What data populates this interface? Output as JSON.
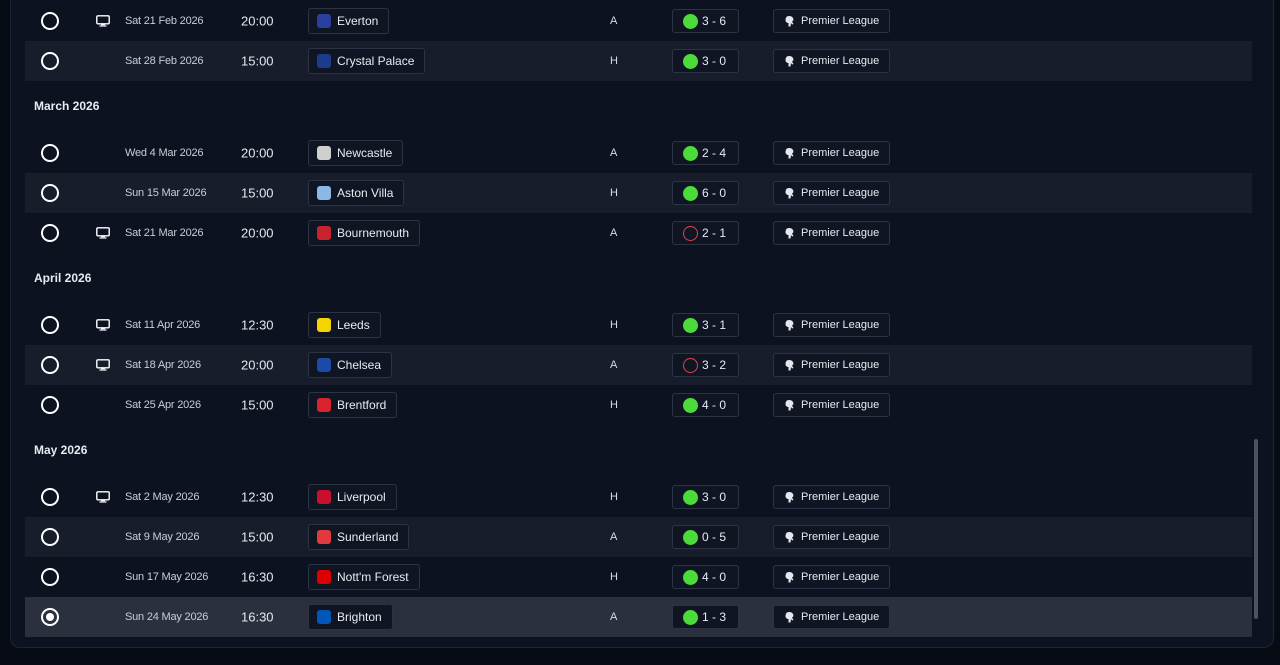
{
  "competition_label": "Premier League",
  "months": [
    {
      "label": "",
      "fixtures": [
        {
          "date": "Sat 21 Feb 2026",
          "time": "20:00",
          "opponent": "Everton",
          "crest_color": "#2a3f9e",
          "venue": "A",
          "outcome": "win",
          "score": "3 - 6",
          "tv": true,
          "selected": false
        },
        {
          "date": "Sat 28 Feb 2026",
          "time": "15:00",
          "opponent": "Crystal Palace",
          "crest_color": "#1b3c8c",
          "venue": "H",
          "outcome": "win",
          "score": "3 - 0",
          "tv": false,
          "selected": false
        }
      ]
    },
    {
      "label": "March 2026",
      "fixtures": [
        {
          "date": "Wed 4 Mar 2026",
          "time": "20:00",
          "opponent": "Newcastle",
          "crest_color": "#cfcfcf",
          "venue": "A",
          "outcome": "win",
          "score": "2 - 4",
          "tv": false,
          "selected": false
        },
        {
          "date": "Sun 15 Mar 2026",
          "time": "15:00",
          "opponent": "Aston Villa",
          "crest_color": "#8ab7e4",
          "venue": "H",
          "outcome": "win",
          "score": "6 - 0",
          "tv": false,
          "selected": false
        },
        {
          "date": "Sat 21 Mar 2026",
          "time": "20:00",
          "opponent": "Bournemouth",
          "crest_color": "#c8232c",
          "venue": "A",
          "outcome": "loss",
          "score": "2 - 1",
          "tv": true,
          "selected": false
        }
      ]
    },
    {
      "label": "April 2026",
      "fixtures": [
        {
          "date": "Sat 11 Apr 2026",
          "time": "12:30",
          "opponent": "Leeds",
          "crest_color": "#f5d400",
          "venue": "H",
          "outcome": "win",
          "score": "3 - 1",
          "tv": true,
          "selected": false
        },
        {
          "date": "Sat 18 Apr 2026",
          "time": "20:00",
          "opponent": "Chelsea",
          "crest_color": "#1c4aa8",
          "venue": "A",
          "outcome": "loss",
          "score": "3 - 2",
          "tv": true,
          "selected": false
        },
        {
          "date": "Sat 25 Apr 2026",
          "time": "15:00",
          "opponent": "Brentford",
          "crest_color": "#d8232a",
          "venue": "H",
          "outcome": "win",
          "score": "4 - 0",
          "tv": false,
          "selected": false
        }
      ]
    },
    {
      "label": "May 2026",
      "fixtures": [
        {
          "date": "Sat 2 May 2026",
          "time": "12:30",
          "opponent": "Liverpool",
          "crest_color": "#c8102e",
          "venue": "H",
          "outcome": "win",
          "score": "3 - 0",
          "tv": true,
          "selected": false
        },
        {
          "date": "Sat 9 May 2026",
          "time": "15:00",
          "opponent": "Sunderland",
          "crest_color": "#e03a3e",
          "venue": "A",
          "outcome": "win",
          "score": "0 - 5",
          "tv": false,
          "selected": false
        },
        {
          "date": "Sun 17 May 2026",
          "time": "16:30",
          "opponent": "Nott'm Forest",
          "crest_color": "#dd0000",
          "venue": "H",
          "outcome": "win",
          "score": "4 - 0",
          "tv": false,
          "selected": false
        },
        {
          "date": "Sun 24 May 2026",
          "time": "16:30",
          "opponent": "Brighton",
          "crest_color": "#0057b8",
          "venue": "A",
          "outcome": "win",
          "score": "1 - 3",
          "tv": false,
          "selected": true
        }
      ]
    }
  ],
  "colors": {
    "win": "#4bdb3a",
    "loss": "#e4424b",
    "panel": "#0d1220",
    "row_alt": "#171d2b",
    "row_selected": "#2a303e"
  }
}
